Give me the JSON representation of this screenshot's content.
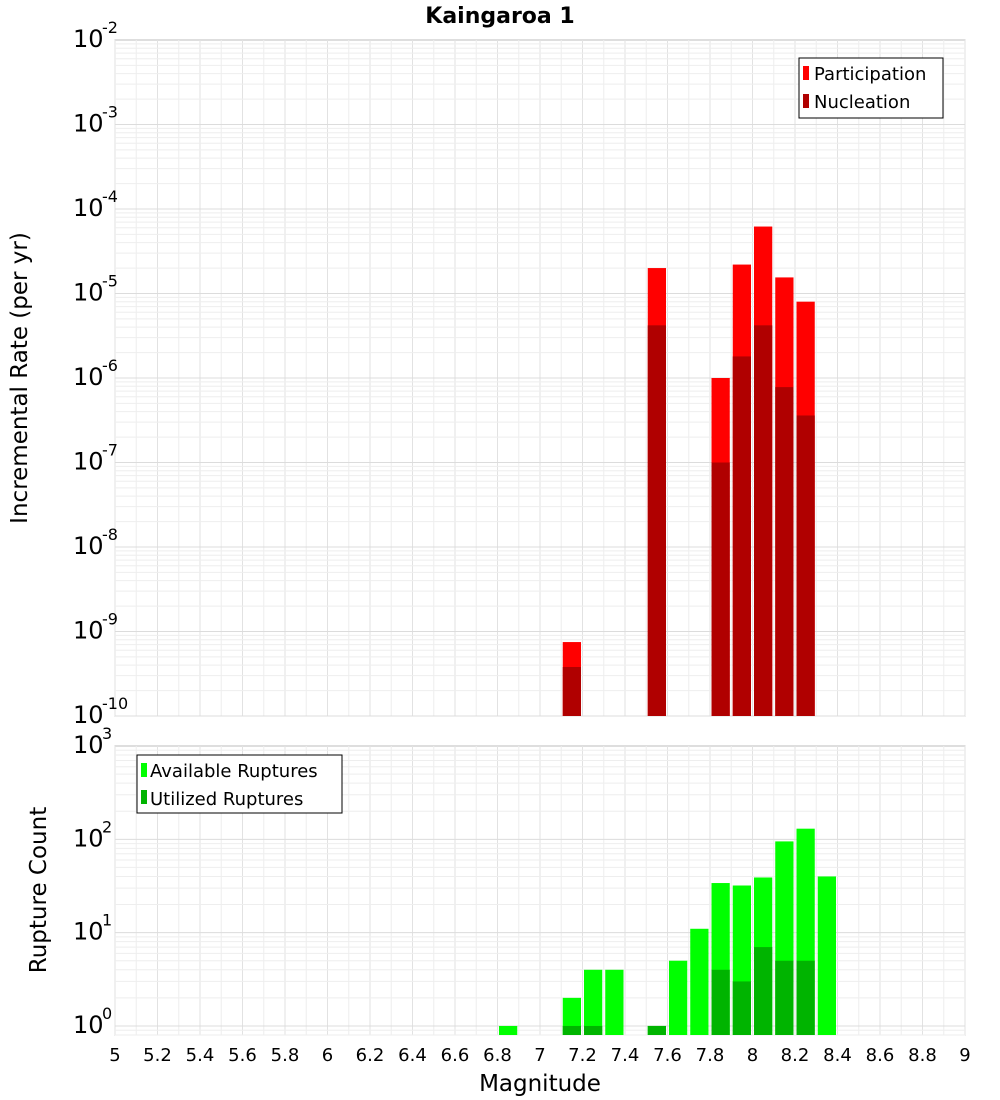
{
  "chart_data": [
    {
      "type": "bar",
      "title": "Kaingaroa 1",
      "xlabel": "",
      "ylabel": "Incremental Rate (per yr)",
      "yscale": "log",
      "ylim": [
        1e-10,
        0.01
      ],
      "xlim": [
        5,
        9
      ],
      "y_tick_exponents": [
        "-10",
        "-9",
        "-8",
        "-7",
        "-6",
        "-5",
        "-4",
        "-3",
        "-2"
      ],
      "bin_width": 0.1,
      "legend_position": "top-right",
      "grid": true,
      "series": [
        {
          "name": "Participation",
          "color": "#ff0000",
          "x": [
            7.15,
            7.55,
            7.85,
            7.95,
            8.05,
            8.15,
            8.25
          ],
          "values": [
            7.5e-10,
            2e-05,
            1e-06,
            2.2e-05,
            6.2e-05,
            1.55e-05,
            8e-06
          ]
        },
        {
          "name": "Nucleation",
          "color": "#b00000",
          "x": [
            7.15,
            7.55,
            7.85,
            7.95,
            8.05,
            8.15,
            8.25
          ],
          "values": [
            3.8e-10,
            4.2e-06,
            1e-07,
            1.8e-06,
            4.2e-06,
            7.8e-07,
            3.6e-07
          ]
        }
      ]
    },
    {
      "type": "bar",
      "title": "",
      "xlabel": "Magnitude",
      "ylabel": "Rupture Count",
      "yscale": "log",
      "ylim": [
        0.8,
        1000
      ],
      "xlim": [
        5,
        9
      ],
      "y_tick_exponents": [
        "0",
        "1",
        "2",
        "3"
      ],
      "x_tick_labels": [
        "5",
        "5.2",
        "5.4",
        "5.6",
        "5.8",
        "6",
        "6.2",
        "6.4",
        "6.6",
        "6.8",
        "7",
        "7.2",
        "7.4",
        "7.6",
        "7.8",
        "8",
        "8.2",
        "8.4",
        "8.6",
        "8.8",
        "9"
      ],
      "bin_width": 0.1,
      "legend_position": "top-left",
      "grid": true,
      "series": [
        {
          "name": "Available Ruptures",
          "color": "#00ff00",
          "x": [
            6.85,
            7.15,
            7.25,
            7.35,
            7.55,
            7.65,
            7.75,
            7.85,
            7.95,
            8.05,
            8.15,
            8.25,
            8.35
          ],
          "values": [
            1,
            2,
            4,
            4,
            1,
            5,
            11,
            34,
            32,
            39,
            95,
            130,
            40
          ]
        },
        {
          "name": "Utilized Ruptures",
          "color": "#00b400",
          "x": [
            7.15,
            7.25,
            7.55,
            7.85,
            7.95,
            8.05,
            8.15,
            8.25
          ],
          "values": [
            1,
            1,
            1,
            4,
            3,
            7,
            5,
            5
          ]
        }
      ]
    }
  ]
}
